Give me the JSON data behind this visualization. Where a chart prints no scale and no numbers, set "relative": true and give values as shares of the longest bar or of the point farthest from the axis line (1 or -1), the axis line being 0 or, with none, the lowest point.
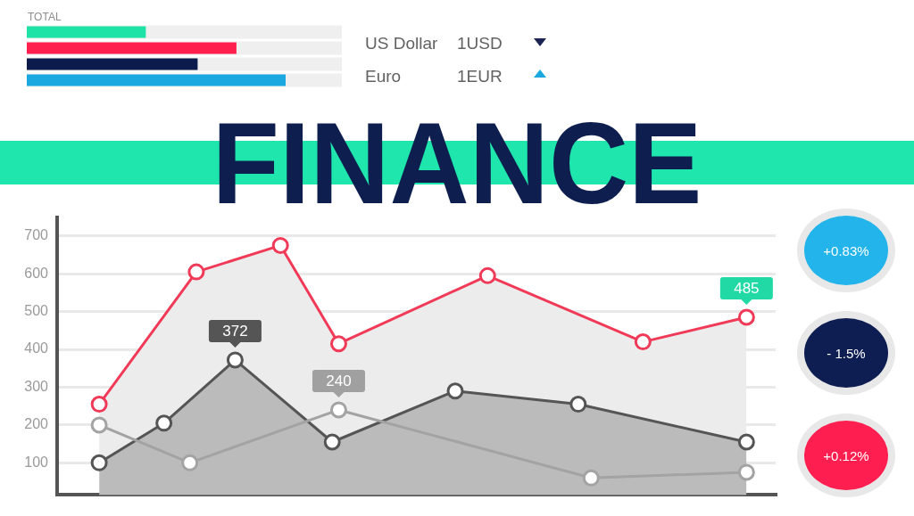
{
  "chart_data": [
    {
      "type": "bar",
      "orientation": "horizontal",
      "relative": true,
      "title": "TOTAL",
      "categories": [
        null,
        null,
        null,
        null
      ],
      "values": [
        0.46,
        0.81,
        0.66,
        1
      ],
      "colors": [
        "#1ee3a6",
        "#ff1f4f",
        "#0d1b4c",
        "#1ba8e0"
      ]
    },
    {
      "type": "other",
      "annotations": [
        "US Dollar",
        "1USD",
        "Euro",
        "1EUR"
      ]
    },
    {
      "type": "area",
      "title": "FINANCE",
      "ylim": [
        15,
        750
      ],
      "yticks": [
        100,
        200,
        300,
        400,
        500,
        600,
        700
      ],
      "grid": "y",
      "tick_labels": "y",
      "marker": "circle",
      "categories": [
        null,
        null,
        null,
        null,
        null,
        null,
        null,
        null,
        null,
        null,
        null,
        null,
        null,
        null,
        null,
        null,
        null,
        null,
        null,
        null,
        null,
        null,
        null,
        null,
        null,
        null,
        null,
        null,
        null,
        null,
        null,
        null,
        null,
        null,
        null,
        null,
        null,
        null,
        null,
        null,
        null,
        null,
        null,
        null,
        null,
        null,
        null,
        null,
        null,
        null,
        null,
        null,
        null,
        null,
        null,
        null,
        null,
        null,
        null,
        null,
        null,
        null,
        null,
        null,
        null,
        null,
        null,
        null,
        null,
        null,
        null,
        null,
        null,
        null,
        null,
        null,
        null,
        null,
        null,
        null,
        null,
        null,
        null,
        null,
        null,
        null,
        null,
        null,
        null,
        null,
        null,
        null,
        null,
        null,
        null,
        null,
        null,
        null,
        null,
        null,
        null,
        null,
        null,
        null,
        null,
        null,
        null,
        null,
        null,
        null,
        null
      ],
      "series": [
        {
          "type": "area",
          "color": "#f03a58",
          "values": [
            null,
            null,
            null,
            null,
            null,
            null,
            255,
            null,
            null,
            null,
            null,
            null,
            null,
            null,
            null,
            null,
            null,
            null,
            null,
            null,
            null,
            605,
            null,
            null,
            null,
            null,
            null,
            null,
            null,
            null,
            null,
            null,
            null,
            null,
            675,
            null,
            null,
            null,
            null,
            null,
            null,
            null,
            null,
            415,
            null,
            null,
            null,
            null,
            null,
            null,
            null,
            null,
            null,
            null,
            null,
            null,
            null,
            null,
            null,
            null,
            null,
            null,
            null,
            null,
            null,
            null,
            595,
            null,
            null,
            null,
            null,
            null,
            null,
            null,
            null,
            null,
            null,
            null,
            null,
            null,
            null,
            null,
            null,
            null,
            null,
            null,
            null,
            null,
            null,
            null,
            420,
            null,
            null,
            null,
            null,
            null,
            null,
            null,
            null,
            null,
            null,
            null,
            null,
            null,
            null,
            null,
            485,
            null,
            null,
            null,
            null
          ],
          "value_labels": [
            null,
            null,
            null,
            null,
            null,
            null,
            null,
            null,
            null,
            null,
            null,
            null,
            null,
            null,
            null,
            null,
            null,
            null,
            null,
            null,
            null,
            null,
            null,
            null,
            null,
            null,
            null,
            null,
            null,
            null,
            null,
            null,
            null,
            null,
            null,
            null,
            null,
            null,
            null,
            null,
            null,
            null,
            null,
            null,
            null,
            null,
            null,
            null,
            null,
            null,
            null,
            null,
            null,
            null,
            null,
            null,
            null,
            null,
            null,
            null,
            null,
            null,
            null,
            null,
            null,
            null,
            null,
            null,
            null,
            null,
            null,
            null,
            null,
            null,
            null,
            null,
            null,
            null,
            null,
            null,
            null,
            null,
            null,
            null,
            null,
            null,
            null,
            null,
            null,
            null,
            null,
            null,
            null,
            null,
            null,
            null,
            null,
            null,
            null,
            null,
            null,
            null,
            null,
            null,
            null,
            null,
            "485",
            null,
            null,
            null,
            null
          ]
        },
        {
          "type": "area",
          "color": "#555555",
          "values": [
            null,
            null,
            null,
            null,
            null,
            null,
            100,
            null,
            null,
            null,
            null,
            null,
            null,
            null,
            null,
            null,
            205,
            null,
            null,
            null,
            null,
            null,
            null,
            null,
            null,
            null,
            null,
            372,
            null,
            null,
            null,
            null,
            null,
            null,
            null,
            null,
            null,
            null,
            null,
            null,
            null,
            null,
            155,
            null,
            null,
            null,
            null,
            null,
            null,
            null,
            null,
            null,
            null,
            null,
            null,
            null,
            null,
            null,
            null,
            null,
            null,
            290,
            null,
            null,
            null,
            null,
            null,
            null,
            null,
            null,
            null,
            null,
            null,
            null,
            null,
            null,
            null,
            null,
            null,
            null,
            255,
            null,
            null,
            null,
            null,
            null,
            null,
            null,
            null,
            null,
            null,
            null,
            null,
            null,
            null,
            null,
            null,
            null,
            null,
            null,
            null,
            null,
            null,
            null,
            null,
            null,
            155,
            null,
            null,
            null,
            null
          ],
          "value_labels": [
            null,
            null,
            null,
            null,
            null,
            null,
            null,
            null,
            null,
            null,
            null,
            null,
            null,
            null,
            null,
            null,
            null,
            null,
            null,
            null,
            null,
            null,
            null,
            null,
            null,
            null,
            null,
            "372",
            null,
            null,
            null,
            null,
            null,
            null,
            null,
            null,
            null,
            null,
            null,
            null,
            null,
            null,
            null,
            null,
            null,
            null,
            null,
            null,
            null,
            null,
            null,
            null,
            null,
            null,
            null,
            null,
            null,
            null,
            null,
            null,
            null,
            null,
            null,
            null,
            null,
            null,
            null,
            null,
            null,
            null,
            null,
            null,
            null,
            null,
            null,
            null,
            null,
            null,
            null,
            null,
            null,
            null,
            null,
            null,
            null,
            null,
            null,
            null,
            null,
            null,
            null,
            null,
            null,
            null,
            null,
            null,
            null,
            null,
            null,
            null,
            null,
            null,
            null,
            null,
            null,
            null,
            null,
            null,
            null,
            null,
            null
          ]
        },
        {
          "type": "line",
          "color": "#a3a3a3",
          "values": [
            null,
            null,
            null,
            null,
            null,
            null,
            200,
            null,
            null,
            null,
            null,
            null,
            null,
            null,
            null,
            null,
            null,
            null,
            null,
            null,
            100,
            null,
            null,
            null,
            null,
            null,
            null,
            null,
            null,
            null,
            null,
            null,
            null,
            null,
            null,
            null,
            null,
            null,
            null,
            null,
            null,
            null,
            null,
            240,
            null,
            null,
            null,
            null,
            null,
            null,
            null,
            null,
            null,
            null,
            null,
            null,
            null,
            null,
            null,
            null,
            null,
            null,
            null,
            null,
            null,
            null,
            null,
            null,
            null,
            null,
            null,
            null,
            null,
            null,
            null,
            null,
            null,
            null,
            null,
            null,
            null,
            null,
            60,
            null,
            null,
            null,
            null,
            null,
            null,
            null,
            null,
            null,
            null,
            null,
            null,
            null,
            null,
            null,
            null,
            null,
            null,
            null,
            null,
            null,
            null,
            null,
            75,
            null,
            null,
            null,
            null
          ],
          "value_labels": [
            null,
            null,
            null,
            null,
            null,
            null,
            null,
            null,
            null,
            null,
            null,
            null,
            null,
            null,
            null,
            null,
            null,
            null,
            null,
            null,
            null,
            null,
            null,
            null,
            null,
            null,
            null,
            null,
            null,
            null,
            null,
            null,
            null,
            null,
            null,
            null,
            null,
            null,
            null,
            null,
            null,
            null,
            null,
            "240",
            null,
            null,
            null,
            null,
            null,
            null,
            null,
            null,
            null,
            null,
            null,
            null,
            null,
            null,
            null,
            null,
            null,
            null,
            null,
            null,
            null,
            null,
            null,
            null,
            null,
            null,
            null,
            null,
            null,
            null,
            null,
            null,
            null,
            null,
            null,
            null,
            null,
            null,
            null,
            null,
            null,
            null,
            null,
            null,
            null,
            null,
            null,
            null,
            null,
            null,
            null,
            null,
            null,
            null,
            null,
            null,
            null,
            null,
            null,
            null,
            null,
            null,
            null,
            null,
            null,
            null,
            null
          ]
        }
      ]
    },
    {
      "type": "other",
      "annotations": [
        "+0.83%",
        "- 1.5%",
        "+0.12%"
      ],
      "colors": [
        "#22b4ea",
        "#0e1d52",
        "#fe1e50"
      ]
    }
  ]
}
